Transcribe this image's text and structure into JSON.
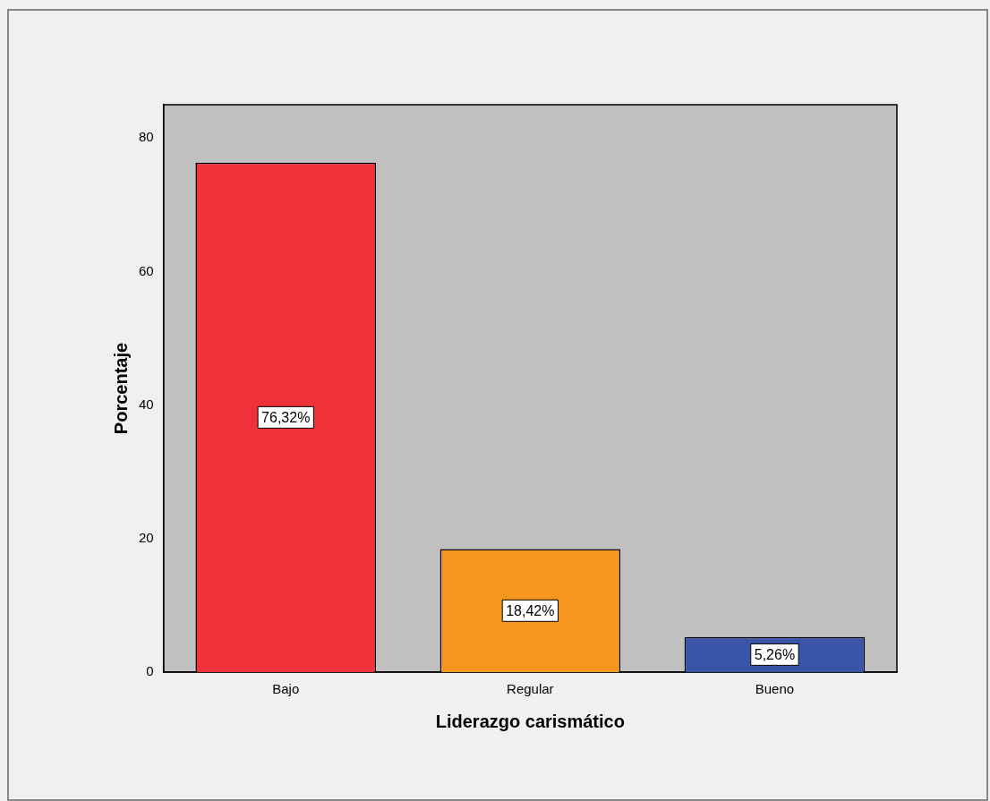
{
  "chart_data": {
    "type": "bar",
    "xlabel": "Liderazgo carismático",
    "ylabel": "Porcentaje",
    "categories": [
      "Bajo",
      "Regular",
      "Bueno"
    ],
    "values": [
      76.32,
      18.42,
      5.26
    ],
    "colors": [
      "#ef3239",
      "#f7961e",
      "#3a55a8"
    ],
    "value_labels": [
      "76,32%",
      "18,42%",
      "5,26%"
    ],
    "ylim": [
      0,
      85
    ],
    "yticks": [
      0,
      20,
      40,
      60,
      80
    ],
    "grid": false,
    "legend": false
  }
}
